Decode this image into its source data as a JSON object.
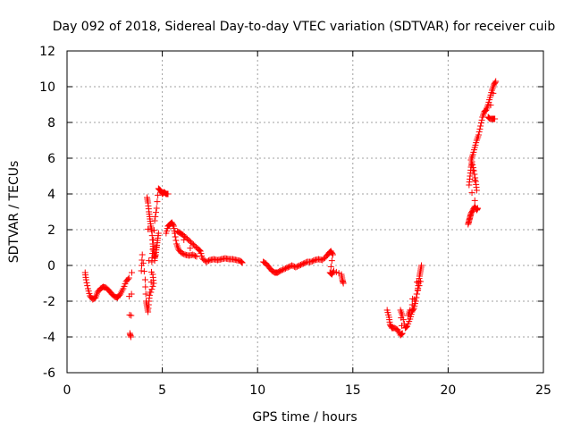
{
  "chart_data": {
    "type": "scatter",
    "title": "Day 092 of 2018, Sidereal Day-to-day VTEC variation (SDTVAR) for receiver cuib",
    "xlabel": "GPS time / hours",
    "ylabel": "SDTVAR / TECUs",
    "xlim": [
      0,
      25
    ],
    "ylim": [
      -6,
      12
    ],
    "xticks": [
      0,
      5,
      10,
      15,
      20,
      25
    ],
    "yticks": [
      -6,
      -4,
      -2,
      0,
      2,
      4,
      6,
      8,
      10,
      12
    ],
    "grid": true,
    "marker": "+",
    "series": [
      {
        "name": "SDTVAR",
        "color": "#ff0000",
        "segments": [
          [
            [
              0.95,
              -0.4
            ],
            [
              1.0,
              -0.8
            ],
            [
              1.1,
              -1.3
            ],
            [
              1.2,
              -1.7
            ],
            [
              1.35,
              -1.9
            ],
            [
              1.5,
              -1.8
            ],
            [
              1.6,
              -1.5
            ],
            [
              1.75,
              -1.3
            ],
            [
              1.9,
              -1.2
            ],
            [
              2.05,
              -1.25
            ],
            [
              2.2,
              -1.4
            ],
            [
              2.35,
              -1.6
            ],
            [
              2.5,
              -1.75
            ],
            [
              2.65,
              -1.8
            ],
            [
              2.8,
              -1.6
            ],
            [
              2.95,
              -1.3
            ],
            [
              3.1,
              -0.9
            ],
            [
              3.25,
              -0.7
            ],
            [
              3.3,
              -3.8
            ],
            [
              3.35,
              -4.0
            ],
            [
              3.4,
              -0.4
            ]
          ],
          [
            [
              3.9,
              -0.3
            ],
            [
              3.95,
              0.6
            ],
            [
              4.1,
              -0.8
            ],
            [
              4.15,
              -2.0
            ],
            [
              4.2,
              -2.3
            ],
            [
              4.25,
              -2.6
            ],
            [
              4.3,
              -2.0
            ],
            [
              4.35,
              -1.5
            ],
            [
              4.2,
              3.8
            ],
            [
              4.25,
              3.5
            ],
            [
              4.3,
              3.0
            ],
            [
              4.35,
              2.6
            ],
            [
              4.4,
              2.2
            ],
            [
              4.45,
              1.9
            ],
            [
              4.5,
              1.2
            ],
            [
              4.55,
              0.8
            ],
            [
              4.6,
              0.4
            ],
            [
              4.65,
              0.6
            ],
            [
              4.7,
              1.0
            ],
            [
              4.75,
              1.4
            ],
            [
              4.8,
              1.8
            ],
            [
              4.5,
              -0.5
            ],
            [
              4.55,
              -1.0
            ],
            [
              4.4,
              -1.5
            ],
            [
              4.45,
              0.2
            ],
            [
              4.5,
              0.9
            ],
            [
              4.6,
              2.5
            ],
            [
              4.7,
              3.2
            ],
            [
              4.8,
              4.3
            ],
            [
              4.9,
              4.2
            ],
            [
              5.0,
              4.0
            ],
            [
              5.1,
              4.1
            ],
            [
              5.2,
              4.0
            ],
            [
              5.3,
              4.0
            ]
          ],
          [
            [
              5.2,
              1.8
            ],
            [
              5.3,
              2.2
            ],
            [
              5.4,
              2.3
            ],
            [
              5.5,
              2.4
            ],
            [
              5.6,
              2.2
            ],
            [
              5.65,
              1.8
            ],
            [
              5.75,
              1.2
            ],
            [
              5.85,
              0.9
            ],
            [
              6.0,
              0.7
            ],
            [
              6.2,
              0.6
            ],
            [
              6.4,
              0.55
            ],
            [
              6.6,
              0.6
            ],
            [
              6.8,
              0.5
            ],
            [
              5.8,
              1.9
            ],
            [
              5.95,
              1.8
            ],
            [
              6.1,
              1.7
            ],
            [
              6.3,
              1.5
            ],
            [
              6.5,
              1.3
            ],
            [
              6.7,
              1.1
            ],
            [
              6.9,
              0.9
            ],
            [
              7.0,
              0.8
            ],
            [
              7.1,
              0.4
            ],
            [
              7.3,
              0.2
            ],
            [
              7.5,
              0.3
            ],
            [
              7.7,
              0.35
            ],
            [
              7.9,
              0.3
            ],
            [
              8.1,
              0.35
            ],
            [
              8.3,
              0.4
            ],
            [
              8.5,
              0.35
            ],
            [
              8.7,
              0.35
            ],
            [
              8.9,
              0.3
            ],
            [
              9.1,
              0.25
            ],
            [
              9.2,
              0.15
            ]
          ],
          [
            [
              10.3,
              0.2
            ],
            [
              10.45,
              0.1
            ],
            [
              10.6,
              -0.1
            ],
            [
              10.75,
              -0.3
            ],
            [
              10.9,
              -0.4
            ],
            [
              11.05,
              -0.4
            ],
            [
              11.2,
              -0.3
            ],
            [
              11.4,
              -0.2
            ],
            [
              11.6,
              -0.1
            ],
            [
              11.8,
              0.0
            ],
            [
              12.0,
              -0.1
            ],
            [
              12.2,
              0.0
            ],
            [
              12.4,
              0.1
            ],
            [
              12.6,
              0.2
            ],
            [
              12.8,
              0.2
            ],
            [
              13.0,
              0.3
            ],
            [
              13.2,
              0.35
            ],
            [
              13.4,
              0.3
            ],
            [
              13.6,
              0.5
            ],
            [
              13.75,
              0.7
            ],
            [
              13.85,
              0.8
            ],
            [
              13.95,
              0.6
            ],
            [
              13.8,
              -0.4
            ],
            [
              13.9,
              -0.5
            ],
            [
              14.0,
              -0.3
            ],
            [
              14.4,
              -0.5
            ],
            [
              14.45,
              -0.8
            ],
            [
              14.5,
              -1.0
            ]
          ],
          [
            [
              16.8,
              -2.5
            ],
            [
              16.9,
              -2.9
            ],
            [
              16.95,
              -3.3
            ],
            [
              17.05,
              -3.5
            ],
            [
              17.2,
              -3.5
            ],
            [
              17.35,
              -3.6
            ],
            [
              17.5,
              -3.9
            ],
            [
              17.6,
              -3.8
            ],
            [
              17.5,
              -2.5
            ],
            [
              17.6,
              -2.8
            ],
            [
              17.75,
              -3.5
            ],
            [
              17.85,
              -3.4
            ],
            [
              18.0,
              -3.0
            ],
            [
              18.1,
              -2.6
            ],
            [
              18.2,
              -2.4
            ],
            [
              18.3,
              -2.0
            ],
            [
              18.4,
              -1.4
            ],
            [
              18.45,
              -1.0
            ],
            [
              18.5,
              -0.6
            ],
            [
              18.55,
              -0.3
            ],
            [
              18.6,
              0.0
            ],
            [
              17.9,
              -2.8
            ],
            [
              18.0,
              -2.5
            ],
            [
              18.35,
              -1.6
            ],
            [
              18.55,
              -0.9
            ]
          ],
          [
            [
              21.05,
              2.3
            ],
            [
              21.1,
              2.5
            ],
            [
              21.15,
              2.7
            ],
            [
              21.2,
              2.9
            ],
            [
              21.3,
              3.1
            ],
            [
              21.4,
              3.3
            ],
            [
              21.5,
              3.1
            ],
            [
              21.55,
              3.2
            ],
            [
              21.1,
              4.5
            ],
            [
              21.15,
              5.0
            ],
            [
              21.2,
              5.5
            ],
            [
              21.25,
              5.8
            ],
            [
              21.35,
              5.3
            ],
            [
              21.45,
              4.7
            ],
            [
              21.5,
              4.2
            ],
            [
              21.2,
              5.9
            ],
            [
              21.3,
              6.2
            ],
            [
              21.4,
              6.6
            ],
            [
              21.5,
              7.0
            ],
            [
              21.6,
              7.3
            ],
            [
              21.7,
              7.8
            ],
            [
              21.8,
              8.3
            ],
            [
              21.9,
              8.6
            ],
            [
              22.0,
              8.7
            ],
            [
              22.1,
              9.0
            ],
            [
              22.2,
              9.4
            ],
            [
              22.3,
              9.8
            ],
            [
              22.4,
              10.1
            ],
            [
              22.5,
              10.3
            ],
            [
              22.1,
              8.3
            ],
            [
              22.2,
              8.2
            ],
            [
              22.35,
              8.2
            ],
            [
              22.45,
              8.2
            ]
          ]
        ]
      }
    ]
  }
}
